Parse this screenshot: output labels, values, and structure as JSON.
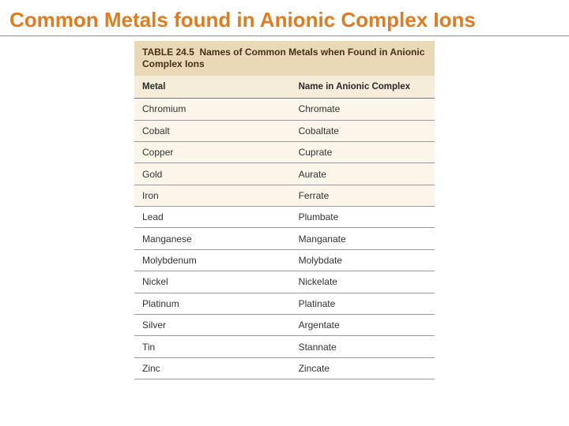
{
  "slide": {
    "title": "Common Metals found in Anionic Complex Ions",
    "title_color": "#e07b1f"
  },
  "table": {
    "caption_prefix": "TABLE 24.5",
    "caption_body": "Names of Common Metals when Found in Anionic Complex Ions",
    "caption_bg": "#e9d9b6",
    "caption_text_color": "#4a2e1a",
    "header_bg": "#f5ecd9",
    "row_tint_bg": "#fbf5ea",
    "border_color": "#9a9a9a",
    "columns": [
      {
        "label": "Metal",
        "width_pct": 52
      },
      {
        "label": "Name in Anionic Complex",
        "width_pct": 48
      }
    ],
    "rows": [
      {
        "metal": "Chromium",
        "name": "Chromate"
      },
      {
        "metal": "Cobalt",
        "name": "Cobaltate"
      },
      {
        "metal": "Copper",
        "name": "Cuprate"
      },
      {
        "metal": "Gold",
        "name": "Aurate"
      },
      {
        "metal": "Iron",
        "name": "Ferrate"
      },
      {
        "metal": "Lead",
        "name": "Plumbate"
      },
      {
        "metal": "Manganese",
        "name": "Manganate"
      },
      {
        "metal": "Molybdenum",
        "name": "Molybdate"
      },
      {
        "metal": "Nickel",
        "name": "Nickelate"
      },
      {
        "metal": "Platinum",
        "name": "Platinate"
      },
      {
        "metal": "Silver",
        "name": "Argentate"
      },
      {
        "metal": "Tin",
        "name": "Stannate"
      },
      {
        "metal": "Zinc",
        "name": "Zincate"
      }
    ]
  }
}
